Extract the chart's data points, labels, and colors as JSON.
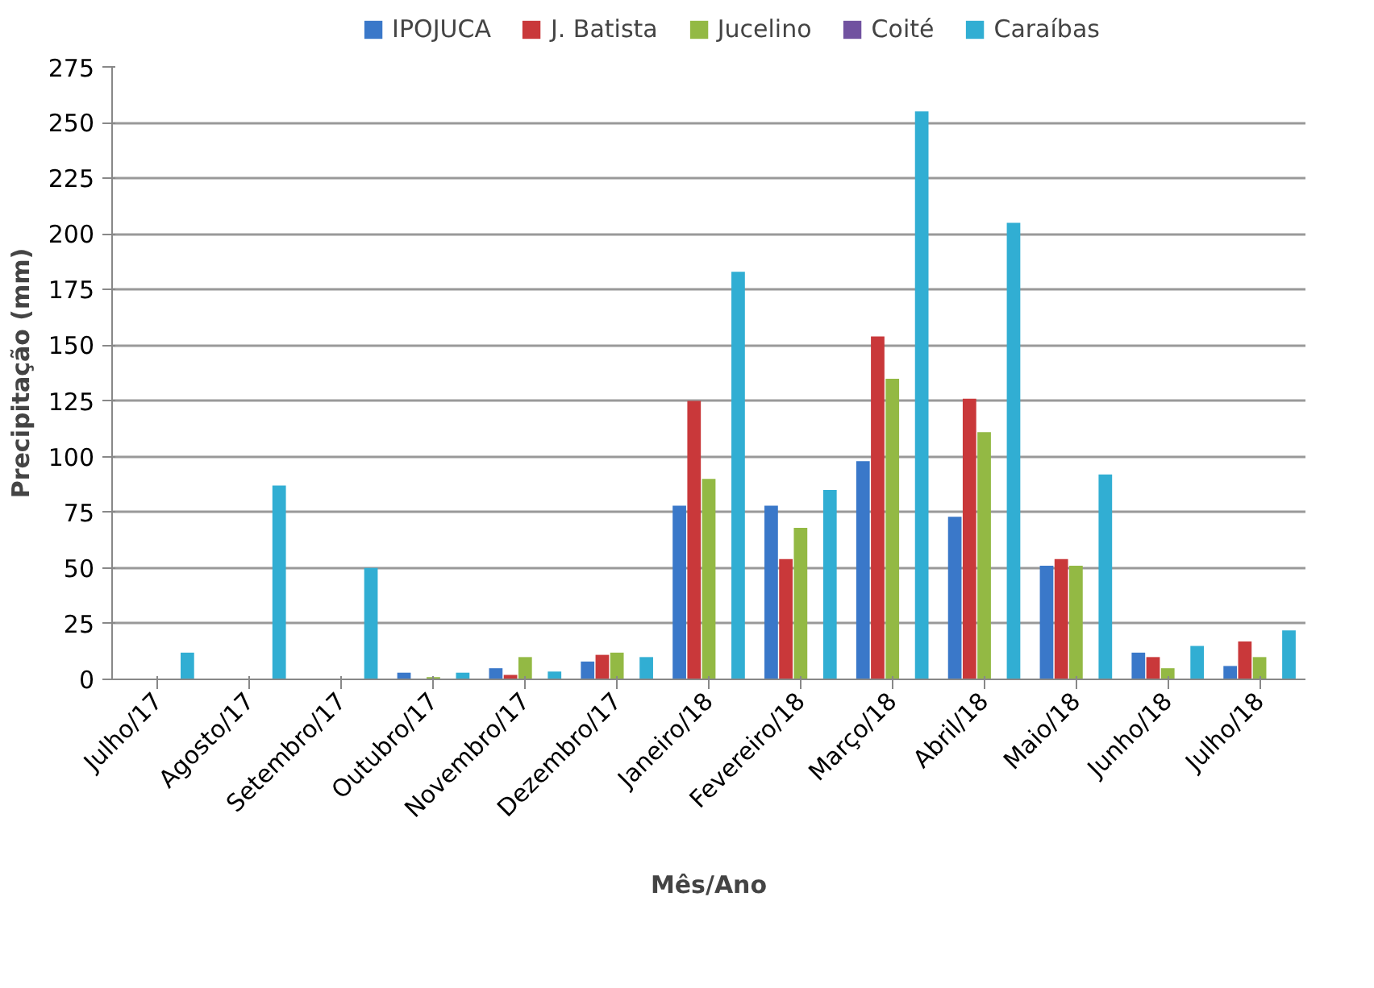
{
  "chart_data": {
    "type": "bar",
    "xlabel": "Mês/Ano",
    "ylabel": "Precipitação (mm)",
    "categories": [
      "Julho/17",
      "Agosto/17",
      "Setembro/17",
      "Outubro/17",
      "Novembro/17",
      "Dezembro/17",
      "Janeiro/18",
      "Fevereiro/18",
      "Março/18",
      "Abril/18",
      "Maio/18",
      "Junho/18",
      "Julho/18"
    ],
    "series": [
      {
        "name": "IPOJUCA",
        "color": "#3a78c9",
        "values": [
          null,
          null,
          null,
          3,
          5,
          8,
          78,
          78,
          98,
          73,
          51,
          12,
          6
        ]
      },
      {
        "name": "J. Batista",
        "color": "#c9383a",
        "values": [
          null,
          null,
          null,
          null,
          2,
          11,
          125,
          54,
          154,
          126,
          54,
          10,
          17
        ]
      },
      {
        "name": "Jucelino",
        "color": "#93b944",
        "values": [
          null,
          null,
          null,
          1,
          10,
          12,
          90,
          68,
          135,
          111,
          51,
          5,
          10
        ]
      },
      {
        "name": "Coité",
        "color": "#7152a0",
        "values": [
          null,
          null,
          null,
          null,
          null,
          null,
          null,
          null,
          null,
          null,
          null,
          null,
          null
        ]
      },
      {
        "name": "Caraíbas",
        "color": "#31aed3",
        "values": [
          12,
          87,
          50,
          3,
          3.5,
          10,
          183,
          85,
          255,
          205,
          92,
          15,
          22
        ]
      }
    ],
    "ylim": [
      0,
      275
    ],
    "yticks": [
      0,
      25,
      50,
      75,
      100,
      125,
      150,
      175,
      200,
      225,
      250,
      275
    ],
    "grid": "y",
    "legend": "top"
  }
}
